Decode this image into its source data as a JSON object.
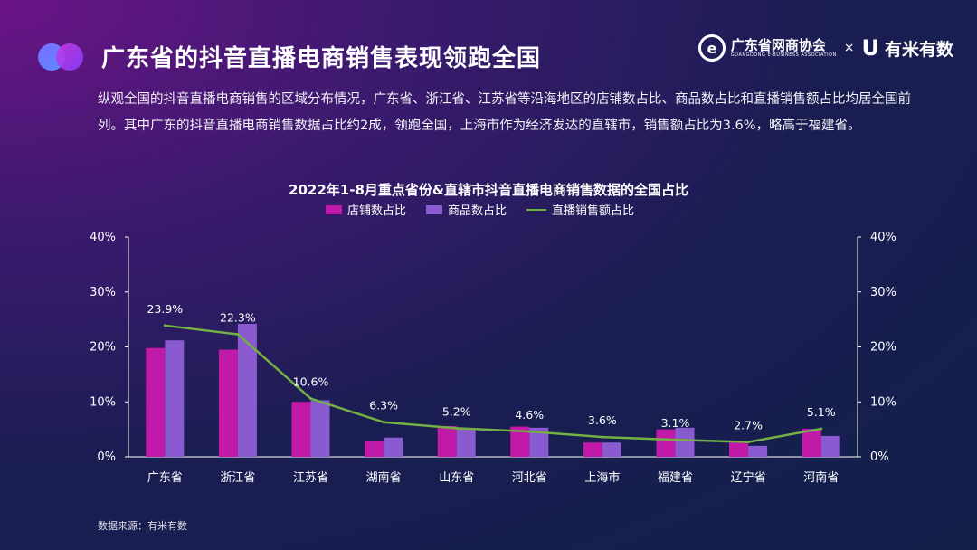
{
  "header": {
    "title": "广东省的抖音直播电商销售表现领跑全国",
    "brand1_zh": "广东省网商协会",
    "brand1_en": "GUANGDONG E-BUSINESS ASSOCIATION",
    "brand1_mark": "e",
    "brand_sep": "×",
    "brand2_mark": "U",
    "brand2_name": "有米有数"
  },
  "description": "纵观全国的抖音直播电商销售的区域分布情况，广东省、浙江省、江苏省等沿海地区的店铺数占比、商品数占比和直播销售额占比均居全国前列。其中广东的抖音直播电商销售数据占比约2成，领跑全国，上海市作为经济发达的直辖市，销售额占比为3.6%，略高于福建省。",
  "colors": {
    "store": "#c21aa8",
    "product": "#8a5ad0",
    "sales": "#74b043",
    "axis": "#ffffff"
  },
  "chart_data": {
    "type": "bar",
    "title": "2022年1-8月重点省份&直辖市抖音直播电商销售数据的全国占比",
    "categories": [
      "广东省",
      "浙江省",
      "江苏省",
      "湖南省",
      "山东省",
      "河北省",
      "上海市",
      "福建省",
      "辽宁省",
      "河南省"
    ],
    "series": [
      {
        "name": "店铺数占比",
        "kind": "bar",
        "values": [
          19.8,
          19.5,
          10.0,
          2.8,
          5.6,
          5.5,
          2.6,
          5.0,
          2.6,
          5.1
        ]
      },
      {
        "name": "商品数占比",
        "kind": "bar",
        "values": [
          21.2,
          24.2,
          10.3,
          3.5,
          5.2,
          5.3,
          2.6,
          5.3,
          2.0,
          3.8
        ]
      },
      {
        "name": "直播销售额占比",
        "kind": "line",
        "values": [
          23.9,
          22.3,
          10.6,
          6.3,
          5.2,
          4.6,
          3.6,
          3.1,
          2.7,
          5.1
        ]
      }
    ],
    "data_labels": [
      "23.9%",
      "22.3%",
      "10.6%",
      "6.3%",
      "5.2%",
      "4.6%",
      "3.6%",
      "3.1%",
      "2.7%",
      "5.1%"
    ],
    "ylim": [
      0,
      40
    ],
    "y_ticks": [
      "0%",
      "10%",
      "20%",
      "30%",
      "40%"
    ],
    "y2_ticks": [
      "0%",
      "10%",
      "20%",
      "30%",
      "40%"
    ],
    "xlabel": "",
    "ylabel": "",
    "legend_position": "top-center"
  },
  "source": "数据来源：有米有数"
}
